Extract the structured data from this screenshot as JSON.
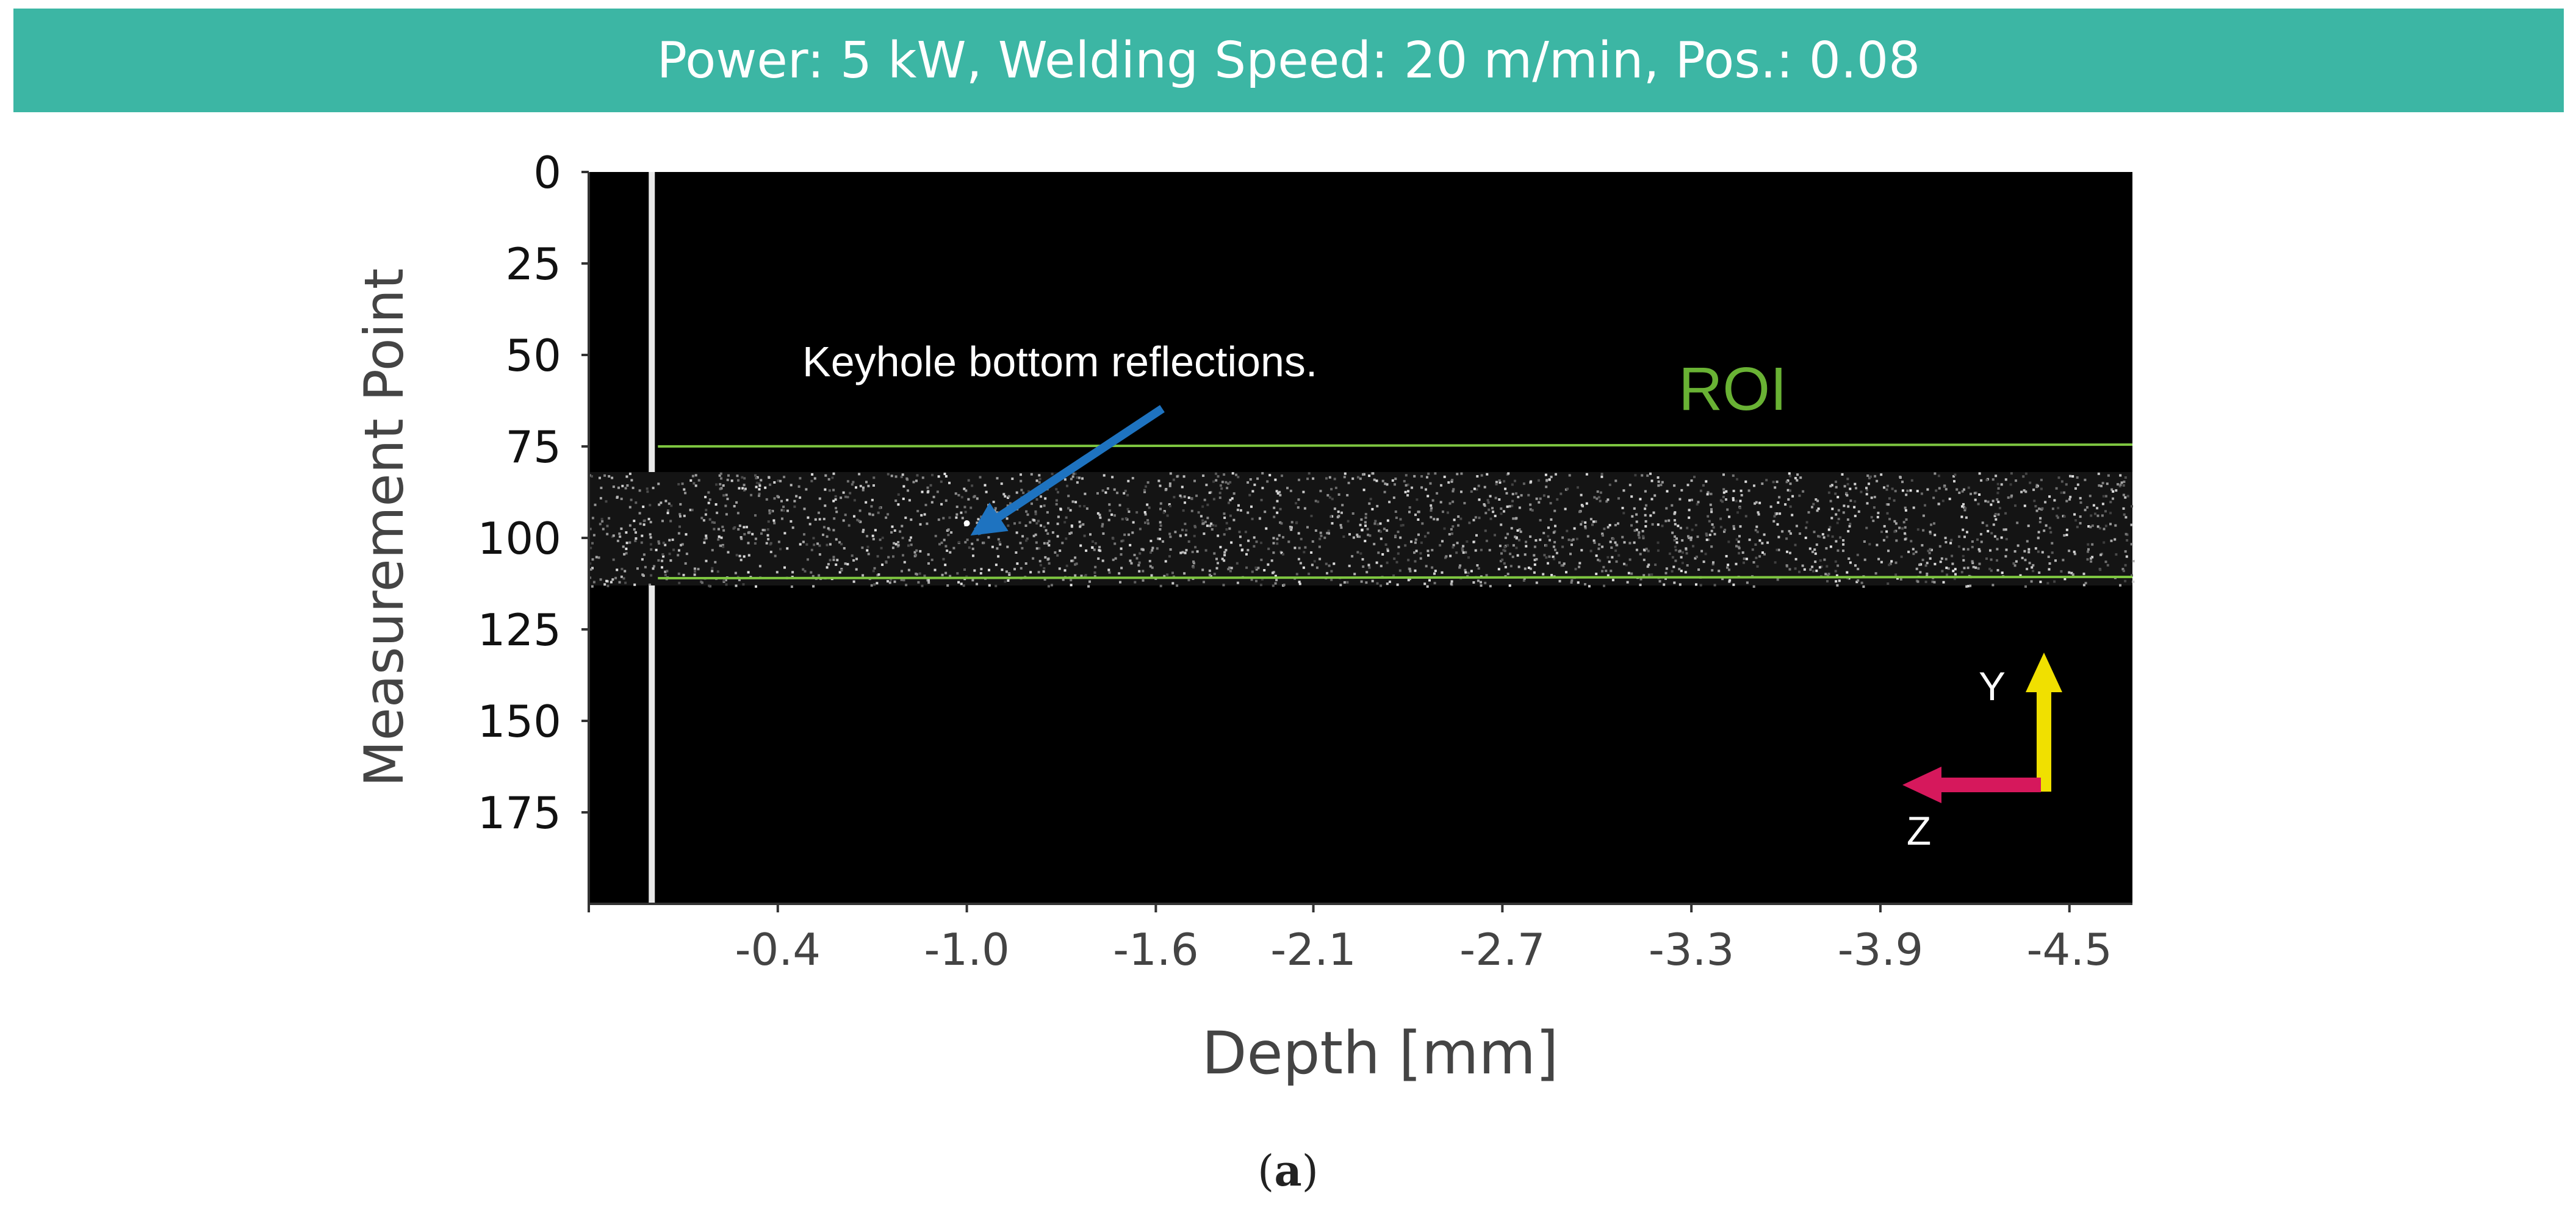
{
  "banner": {
    "text": "Power: 5 kW, Welding Speed: 20 m/min, Pos.: 0.08"
  },
  "caption": {
    "open": "(",
    "letter": "a",
    "close": ")"
  },
  "chart_data": {
    "type": "heatmap",
    "title": "Power: 5 kW, Welding Speed: 20 m/min, Pos.: 0.08",
    "xlabel": "Depth [mm]",
    "ylabel": "Measurement Point",
    "x_ticks": [
      "-0.4",
      "-1.0",
      "-1.6",
      "-2.1",
      "-2.7",
      "-3.3",
      "-3.9",
      "-4.5"
    ],
    "x_tick_values": [
      -0.4,
      -1.0,
      -1.6,
      -2.1,
      -2.7,
      -3.3,
      -3.9,
      -4.5
    ],
    "xlim": [
      0.2,
      -4.7
    ],
    "y_ticks": [
      "0",
      "25",
      "50",
      "75",
      "100",
      "125",
      "150",
      "175"
    ],
    "y_tick_values": [
      0,
      25,
      50,
      75,
      100,
      125,
      150,
      175
    ],
    "ylim": [
      0,
      200
    ],
    "y_reversed": true,
    "background": "#000000",
    "surface_line": {
      "x": -0.0,
      "color": "#e8e8e8"
    },
    "reflection_band": {
      "y_range": [
        82,
        113
      ],
      "x_range": [
        0.2,
        -4.7
      ]
    },
    "roi": {
      "label": "ROI",
      "label_x": -3.4,
      "label_y": 57,
      "top_y": 75,
      "bottom_y": 111,
      "color": "#7ec640"
    },
    "annotation": {
      "text": "Keyhole bottom reflections.",
      "text_x": -0.2,
      "text_y": 50,
      "target_x": -1.0,
      "target_y": 96,
      "arrow_color": "#1e73c0"
    },
    "axes_indicator": {
      "y_label": "Y",
      "z_label": "Z",
      "y_color": "#f0e000",
      "z_color": "#d6185c"
    }
  }
}
